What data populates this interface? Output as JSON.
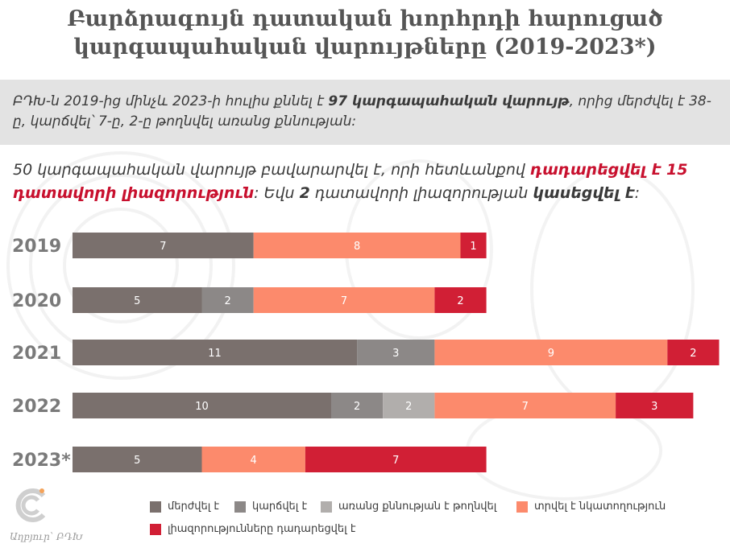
{
  "title": {
    "line1": "Բարձրագույն դատական խորհրդի հարուցած",
    "line2": "կարգապահական վարույթները (2019-2023*)"
  },
  "intro": {
    "part1": "ԲԴԽ-ն 2019-ից մինչև 2023-ի հուլիս քննել է ",
    "bold_count": "97",
    "bold_phrase": " կարգապահական վարույթ",
    "part2": ", որից մերժվել է 38-ը, կարճվել՝ 7-ը, 2-ը թողնվել առանց քննության:"
  },
  "detail": {
    "part1": "50 կարգապահական վարույթ բավարարվել է, որի հետևանքով ",
    "red1": "դադարեցվել է 15 դատավորի լիազորություն",
    "part2": ": Եվս ",
    "bold_num": "2",
    "part3": " դատավորի լիազորության ",
    "bold_phrase": "կասեցվել է",
    "part4": ":"
  },
  "chart_data": {
    "type": "bar",
    "orientation": "horizontal",
    "stacked": true,
    "categories": [
      "2019",
      "2020",
      "2021",
      "2022",
      "2023*"
    ],
    "series": [
      {
        "name": "մերժվել է",
        "color": "#7a706d",
        "values": [
          7,
          5,
          11,
          10,
          5
        ]
      },
      {
        "name": "կարճվել է",
        "color": "#8c8887",
        "values": [
          0,
          2,
          3,
          2,
          0
        ]
      },
      {
        "name": "առանց քննության է թողնվել",
        "color": "#b1aeac",
        "values": [
          0,
          0,
          0,
          2,
          0
        ]
      },
      {
        "name": "տրվել է նկատողություն",
        "color": "#fc8a6c",
        "values": [
          8,
          7,
          9,
          7,
          4
        ]
      },
      {
        "name": "լիազորությունները դադարեցվել է",
        "color": "#d11f35",
        "values": [
          1,
          2,
          2,
          3,
          7
        ]
      }
    ],
    "xlim": [
      0,
      25
    ],
    "grid": false,
    "legend": "bottom"
  },
  "source": "Աղբյուր՝ ԲԴԽ"
}
